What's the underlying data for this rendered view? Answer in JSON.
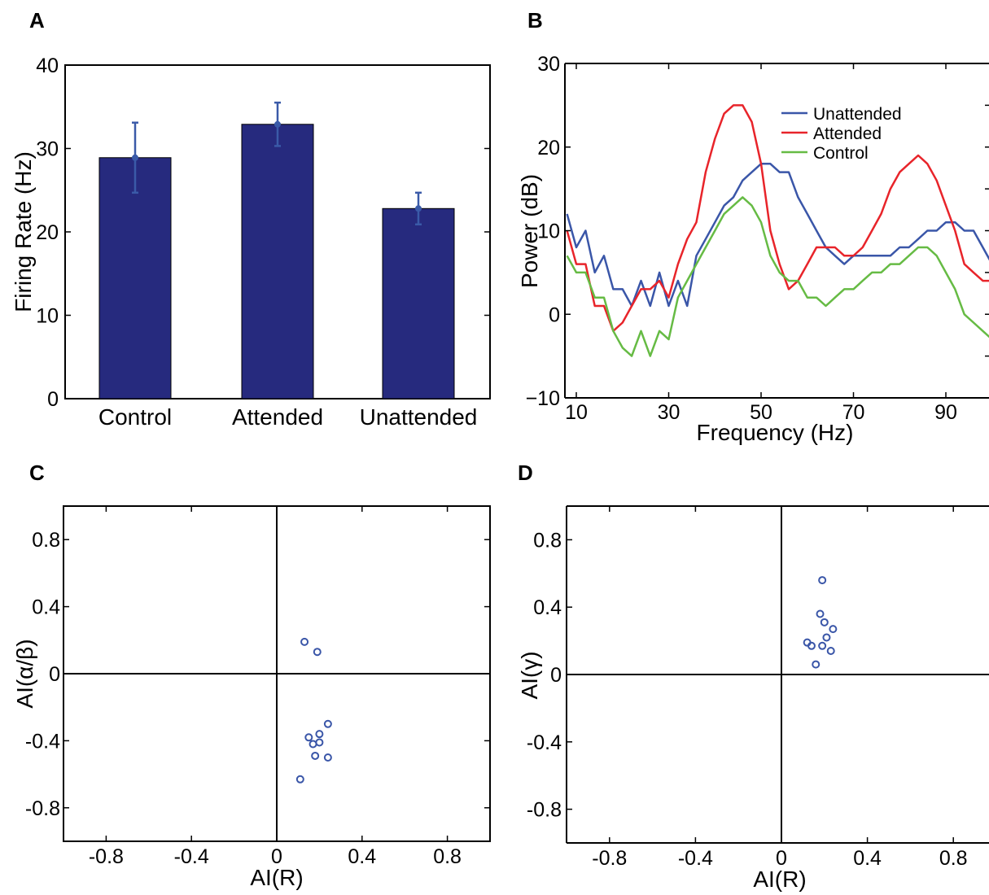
{
  "panels": {
    "A": {
      "label": "A"
    },
    "B": {
      "label": "B"
    },
    "C": {
      "label": "C"
    },
    "D": {
      "label": "D"
    }
  },
  "chart_data": [
    {
      "panel": "A",
      "type": "bar",
      "categories": [
        "Control",
        "Attended",
        "Unattended"
      ],
      "values": [
        28.9,
        32.9,
        22.8
      ],
      "error": [
        4.2,
        2.6,
        1.9
      ],
      "ylabel": "Firing Rate (Hz)",
      "xlabel": "",
      "ylim": [
        0,
        40
      ],
      "yticks": [
        "0",
        "10",
        "20",
        "30",
        "40"
      ],
      "bar_color": "#262a7e",
      "errorbar_color": "#3a5aa8"
    },
    {
      "panel": "B",
      "type": "line",
      "xlabel": "Frequency (Hz)",
      "ylabel": "Power (dB)",
      "xlim": [
        8,
        100
      ],
      "ylim": [
        -10,
        30
      ],
      "xticks": [
        "10",
        "30",
        "50",
        "70",
        "90"
      ],
      "yticks": [
        "−10",
        "0",
        "10",
        "20",
        "30"
      ],
      "legend_position": "top-right",
      "x": [
        8,
        10,
        12,
        14,
        16,
        18,
        20,
        22,
        24,
        26,
        28,
        30,
        32,
        34,
        36,
        38,
        40,
        42,
        44,
        46,
        48,
        50,
        52,
        54,
        56,
        58,
        60,
        62,
        64,
        66,
        68,
        70,
        72,
        74,
        76,
        78,
        80,
        82,
        84,
        86,
        88,
        90,
        92,
        94,
        96,
        98,
        100
      ],
      "series": [
        {
          "name": "Unattended",
          "color": "#3a56a8",
          "values": [
            12,
            8,
            10,
            5,
            7,
            3,
            3,
            1,
            4,
            1,
            5,
            1,
            4,
            1,
            7,
            9,
            11,
            13,
            14,
            16,
            17,
            18,
            18,
            17,
            17,
            14,
            12,
            10,
            8,
            7,
            6,
            7,
            7,
            7,
            7,
            7,
            8,
            8,
            9,
            10,
            10,
            11,
            11,
            10,
            10,
            8,
            6
          ]
        },
        {
          "name": "Attended",
          "color": "#e8242a",
          "values": [
            10,
            6,
            6,
            1,
            1,
            -2,
            -1,
            1,
            3,
            3,
            4,
            2,
            6,
            9,
            11,
            17,
            21,
            24,
            25,
            25,
            23,
            18,
            10,
            6,
            3,
            4,
            6,
            8,
            8,
            8,
            7,
            7,
            8,
            10,
            12,
            15,
            17,
            18,
            19,
            18,
            16,
            13,
            10,
            6,
            5,
            4,
            4
          ]
        },
        {
          "name": "Control",
          "color": "#66bb44",
          "values": [
            7,
            5,
            5,
            2,
            2,
            -2,
            -4,
            -5,
            -2,
            -5,
            -2,
            -3,
            2,
            4,
            6,
            8,
            10,
            12,
            13,
            14,
            13,
            11,
            7,
            5,
            4,
            4,
            2,
            2,
            1,
            2,
            3,
            3,
            4,
            5,
            5,
            6,
            6,
            7,
            8,
            8,
            7,
            5,
            3,
            0,
            -1,
            -2,
            -3
          ]
        }
      ]
    },
    {
      "panel": "C",
      "type": "scatter",
      "xlabel": "AI(R)",
      "ylabel": "AI(α/β)",
      "xlim": [
        -1,
        1
      ],
      "ylim": [
        -1,
        1
      ],
      "xticks": [
        "-0.8",
        "-0.4",
        "0",
        "0.4",
        "0.8"
      ],
      "yticks": [
        "-0.8",
        "-0.4",
        "0",
        "0.4",
        "0.8"
      ],
      "marker_color": "#3a56a8",
      "points": [
        [
          0.13,
          0.19
        ],
        [
          0.19,
          0.13
        ],
        [
          0.24,
          -0.3
        ],
        [
          0.2,
          -0.36
        ],
        [
          0.15,
          -0.38
        ],
        [
          0.2,
          -0.41
        ],
        [
          0.17,
          -0.42
        ],
        [
          0.18,
          -0.49
        ],
        [
          0.24,
          -0.5
        ],
        [
          0.11,
          -0.63
        ]
      ]
    },
    {
      "panel": "D",
      "type": "scatter",
      "xlabel": "AI(R)",
      "ylabel": "AI(γ)",
      "xlim": [
        -1,
        1
      ],
      "ylim": [
        -1,
        1
      ],
      "xticks": [
        "-0.8",
        "-0.4",
        "0",
        "0.4",
        "0.8"
      ],
      "yticks": [
        "-0.8",
        "-0.4",
        "0",
        "0.4",
        "0.8"
      ],
      "marker_color": "#3a56a8",
      "points": [
        [
          0.19,
          0.56
        ],
        [
          0.18,
          0.36
        ],
        [
          0.2,
          0.31
        ],
        [
          0.24,
          0.27
        ],
        [
          0.21,
          0.22
        ],
        [
          0.12,
          0.19
        ],
        [
          0.14,
          0.17
        ],
        [
          0.19,
          0.17
        ],
        [
          0.23,
          0.14
        ],
        [
          0.16,
          0.06
        ]
      ]
    }
  ]
}
